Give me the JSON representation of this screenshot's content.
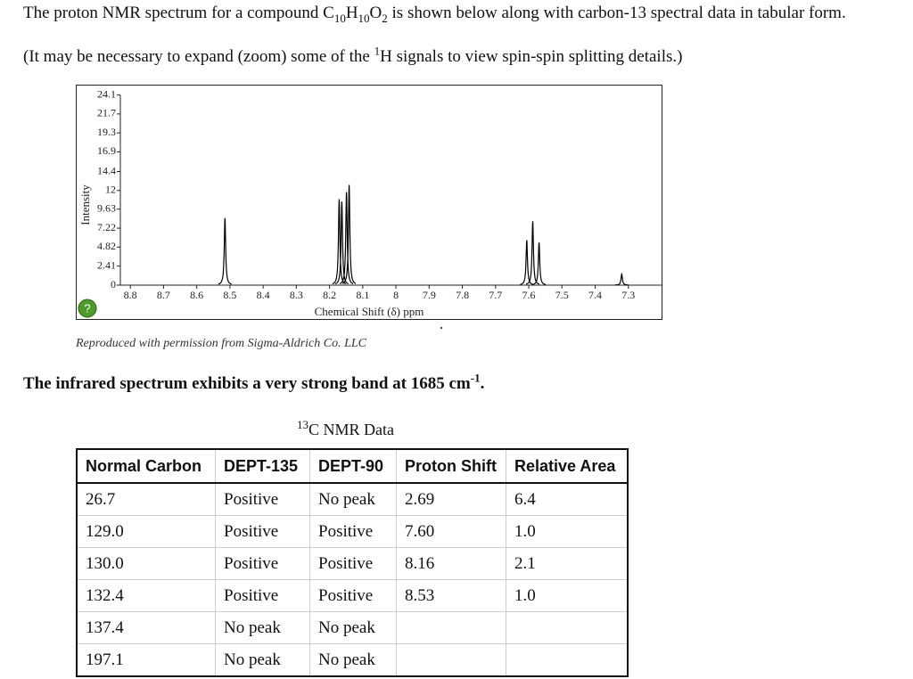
{
  "intro": {
    "parts": [
      "The proton NMR spectrum for a compound C",
      "10",
      "H",
      "10",
      "O",
      "2",
      " is shown below along with carbon-13 spectral data in tabular form."
    ]
  },
  "note": {
    "parts": [
      "(It may be necessary to expand (zoom) some of the ",
      "1",
      "H signals to view spin-spin splitting details.)"
    ]
  },
  "chart_data": {
    "type": "spectrum",
    "x_label": "Chemical Shift (δ) ppm",
    "y_label": "Intensity",
    "x": [
      8.515,
      8.171,
      8.163,
      8.149,
      8.141,
      7.606,
      7.588,
      7.569,
      7.32
    ],
    "values": [
      8.5,
      10.9,
      10.6,
      11.8,
      12.7,
      5.7,
      8.1,
      5.4,
      1.4
    ],
    "color": "#000000",
    "xlim": [
      8.83,
      7.2
    ],
    "ylim": [
      0,
      25.3
    ],
    "xticks": [
      8.8,
      8.7,
      8.6,
      8.5,
      8.4,
      8.3,
      8.2,
      8.1,
      8,
      7.9,
      7.8,
      7.7,
      7.6,
      7.5,
      7.4,
      7.3
    ],
    "yticks": [
      0,
      2.41,
      4.82,
      7.22,
      9.63,
      12,
      14.4,
      16.9,
      19.3,
      21.7,
      24.1
    ]
  },
  "help_button": "?",
  "caption": "Reproduced with permission from Sigma-Aldrich Co. LLC",
  "ir": {
    "parts": [
      "The infrared spectrum exhibits a very strong band at 1685 cm",
      "-1",
      "."
    ]
  },
  "table": {
    "title_parts": [
      "13",
      "C NMR Data"
    ],
    "headers": [
      "Normal Carbon",
      "DEPT-135",
      "DEPT-90",
      "Proton Shift",
      "Relative Area"
    ],
    "rows": [
      [
        "26.7",
        "Positive",
        "No peak",
        "2.69",
        "6.4"
      ],
      [
        "129.0",
        "Positive",
        "Positive",
        "7.60",
        "1.0"
      ],
      [
        "130.0",
        "Positive",
        "Positive",
        "8.16",
        "2.1"
      ],
      [
        "132.4",
        "Positive",
        "Positive",
        "8.53",
        "1.0"
      ],
      [
        "137.4",
        "No peak",
        "No peak"
      ],
      [
        "197.1",
        "No peak",
        "No peak"
      ]
    ]
  }
}
